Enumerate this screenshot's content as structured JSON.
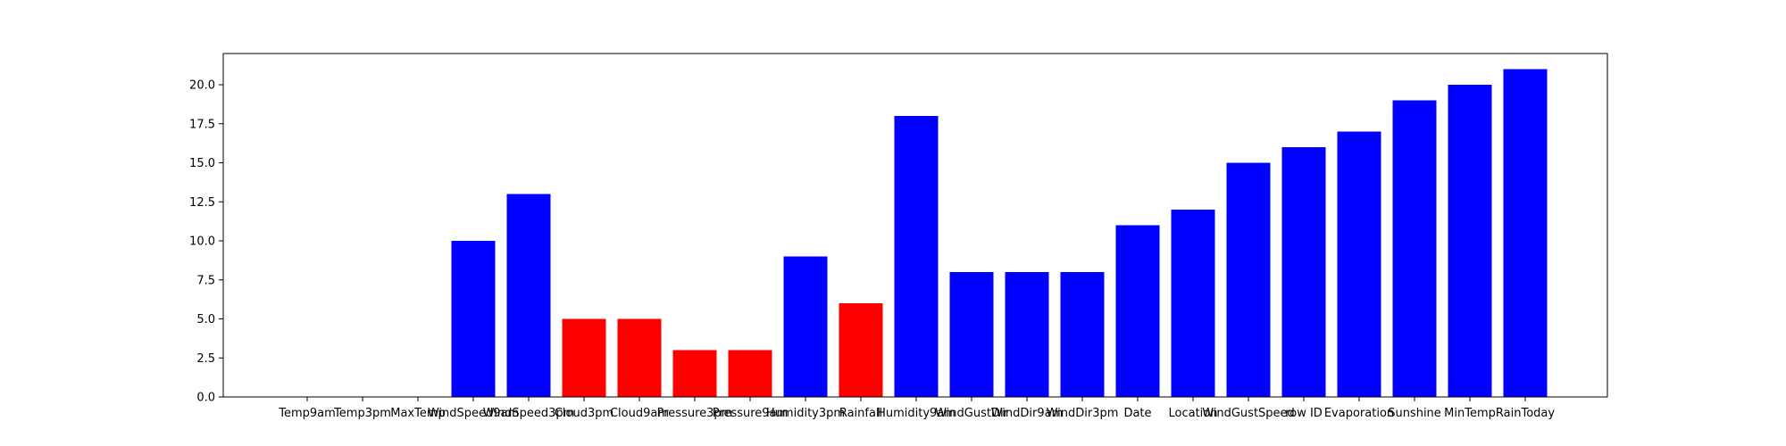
{
  "chart_data": {
    "type": "bar",
    "title": "",
    "xlabel": "",
    "ylabel": "",
    "ylim": [
      0,
      22
    ],
    "yticks": [
      0.0,
      2.5,
      5.0,
      7.5,
      10.0,
      12.5,
      15.0,
      17.5,
      20.0
    ],
    "ytick_labels": [
      "0.0",
      "2.5",
      "5.0",
      "7.5",
      "10.0",
      "12.5",
      "15.0",
      "17.5",
      "20.0"
    ],
    "grid": false,
    "categories": [
      "Temp9am",
      "Temp3pm",
      "MaxTemp",
      "WindSpeed9am",
      "WindSpeed3pm",
      "Cloud3pm",
      "Cloud9am",
      "Pressure3pm",
      "Pressure9am",
      "Humidity3pm",
      "Rainfall",
      "Humidity9am",
      "WindGustDir",
      "WindDir9am",
      "WindDir3pm",
      "Date",
      "Location",
      "WindGustSpeed",
      "row ID",
      "Evaporation",
      "Sunshine",
      "MinTemp",
      "RainToday"
    ],
    "values": [
      0,
      0,
      0,
      10,
      13,
      5,
      5,
      3,
      3,
      9,
      6,
      18,
      8,
      8,
      8,
      11,
      12,
      15,
      16,
      17,
      19,
      20,
      21
    ],
    "bar_colors": [
      "#0000ff",
      "#0000ff",
      "#0000ff",
      "#0000ff",
      "#0000ff",
      "#ff0000",
      "#ff0000",
      "#ff0000",
      "#ff0000",
      "#0000ff",
      "#ff0000",
      "#0000ff",
      "#0000ff",
      "#0000ff",
      "#0000ff",
      "#0000ff",
      "#0000ff",
      "#0000ff",
      "#0000ff",
      "#0000ff",
      "#0000ff",
      "#0000ff",
      "#0000ff"
    ]
  }
}
